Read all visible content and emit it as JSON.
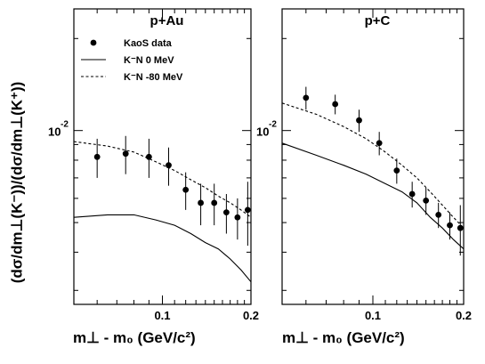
{
  "y_axis_label": "(dσ/dm⊥(K⁻))/(dσ/dm⊥(K⁺))",
  "x_axis_label": "m⊥ - m₀ (GeV/c²)",
  "chart_data": [
    {
      "type": "scatter",
      "title": "p+Au",
      "xlim": [
        0.05,
        0.2
      ],
      "ylim": [
        0.0027,
        0.025
      ],
      "yscale": "log",
      "x_ticks": [
        0.1,
        0.2
      ],
      "x_tick_labels": [
        "0.1",
        "0.2"
      ],
      "y_tick_labels": [
        {
          "value": 0.01,
          "base": "10",
          "exp": "-2"
        }
      ],
      "legend": {
        "placement": "top-left",
        "entries": [
          {
            "label": "KaoS data",
            "style": "marker"
          },
          {
            "label": "K⁻N  0 MeV",
            "style": "solid"
          },
          {
            "label": "K⁻N  -80 MeV",
            "style": "dashed"
          }
        ]
      },
      "data": {
        "name": "KaoS data",
        "x": [
          0.06,
          0.075,
          0.09,
          0.105,
          0.12,
          0.135,
          0.15,
          0.165,
          0.18,
          0.195
        ],
        "y": [
          0.0082,
          0.0084,
          0.0082,
          0.0077,
          0.0064,
          0.0058,
          0.0058,
          0.0054,
          0.0052,
          0.0055
        ],
        "yerr": [
          0.0012,
          0.0012,
          0.0012,
          0.0011,
          0.0009,
          0.0009,
          0.0009,
          0.0008,
          0.0008,
          0.0013
        ]
      },
      "curves": [
        {
          "name": "K⁻N 0 MeV",
          "style": "solid",
          "x": [
            0.05,
            0.065,
            0.08,
            0.095,
            0.11,
            0.125,
            0.14,
            0.155,
            0.17,
            0.185,
            0.2
          ],
          "y": [
            0.0052,
            0.0053,
            0.0053,
            0.0051,
            0.0049,
            0.0046,
            0.0043,
            0.0041,
            0.0038,
            0.0035,
            0.0032
          ]
        },
        {
          "name": "K⁻N -80 MeV",
          "style": "dashed",
          "x": [
            0.05,
            0.065,
            0.08,
            0.095,
            0.11,
            0.125,
            0.14,
            0.155,
            0.17,
            0.185,
            0.2
          ],
          "y": [
            0.0092,
            0.0089,
            0.0085,
            0.0079,
            0.0074,
            0.0069,
            0.0065,
            0.0061,
            0.0058,
            0.0055,
            0.0052
          ]
        }
      ]
    },
    {
      "type": "scatter",
      "title": "p+C",
      "xlim": [
        0.05,
        0.2
      ],
      "ylim": [
        0.0027,
        0.025
      ],
      "yscale": "log",
      "x_ticks": [
        0.1,
        0.2
      ],
      "x_tick_labels": [
        "0.1",
        "0.2"
      ],
      "y_tick_labels": [
        {
          "value": 0.01,
          "base": "10",
          "exp": "-2"
        }
      ],
      "data": {
        "name": "KaoS data",
        "x": [
          0.06,
          0.075,
          0.09,
          0.105,
          0.12,
          0.135,
          0.15,
          0.165,
          0.18,
          0.195
        ],
        "y": [
          0.0128,
          0.0122,
          0.0108,
          0.0091,
          0.0074,
          0.0062,
          0.0059,
          0.0053,
          0.0049,
          0.0048
        ],
        "yerr": [
          0.0011,
          0.0009,
          0.0009,
          0.0008,
          0.0007,
          0.0006,
          0.0006,
          0.0005,
          0.0005,
          0.0009
        ]
      },
      "curves": [
        {
          "name": "K⁻N 0 MeV",
          "style": "solid",
          "x": [
            0.05,
            0.065,
            0.08,
            0.095,
            0.11,
            0.125,
            0.14,
            0.155,
            0.17,
            0.185,
            0.2
          ],
          "y": [
            0.0091,
            0.0083,
            0.0077,
            0.0072,
            0.0067,
            0.0063,
            0.0058,
            0.0052,
            0.0048,
            0.0044,
            0.0041
          ]
        },
        {
          "name": "K⁻N -80 MeV",
          "style": "dashed",
          "x": [
            0.05,
            0.065,
            0.08,
            0.095,
            0.11,
            0.125,
            0.14,
            0.155,
            0.17,
            0.185,
            0.2
          ],
          "y": [
            0.0123,
            0.0113,
            0.0103,
            0.0094,
            0.0085,
            0.0077,
            0.007,
            0.0063,
            0.0057,
            0.0052,
            0.0048
          ]
        }
      ]
    }
  ]
}
